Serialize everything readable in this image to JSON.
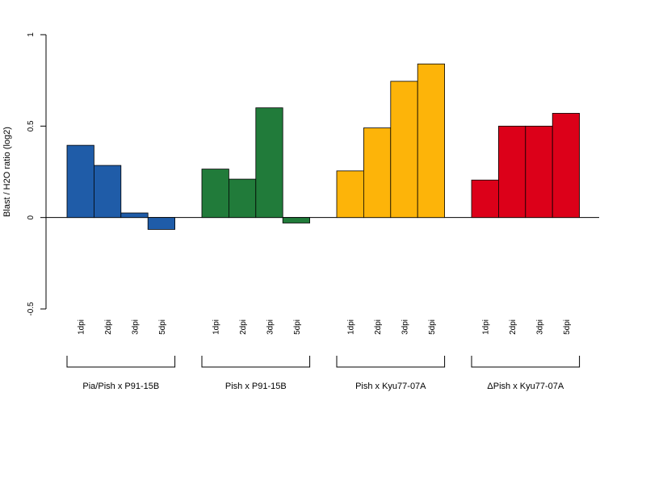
{
  "chart_data": {
    "type": "bar",
    "title": "",
    "ylabel": "Blast / H2O ratio (log2)",
    "xlabel": "",
    "ylim": [
      -0.5,
      1
    ],
    "yticks": [
      -0.5,
      0,
      0.5,
      1
    ],
    "ytick_labels": [
      "-0.5",
      "0",
      "0.5",
      "1"
    ],
    "categories": [
      "1dpi",
      "2dpi",
      "3dpi",
      "5dpi"
    ],
    "groups": [
      {
        "name": "Pia/Pish x P91-15B",
        "color": "#1f5ca8",
        "values": [
          0.395,
          0.285,
          0.025,
          -0.065
        ]
      },
      {
        "name": "Pish x P91-15B",
        "color": "#217b3a",
        "values": [
          0.265,
          0.21,
          0.6,
          -0.03
        ]
      },
      {
        "name": "Pish x Kyu77-07A",
        "color": "#fdb409",
        "values": [
          0.255,
          0.49,
          0.745,
          0.84
        ]
      },
      {
        "name": "ΔPish x Kyu77-07A",
        "color": "#dc0019",
        "values": [
          0.205,
          0.5,
          0.5,
          0.57
        ]
      }
    ],
    "legend": "none",
    "grid": false,
    "baseline": 0
  }
}
